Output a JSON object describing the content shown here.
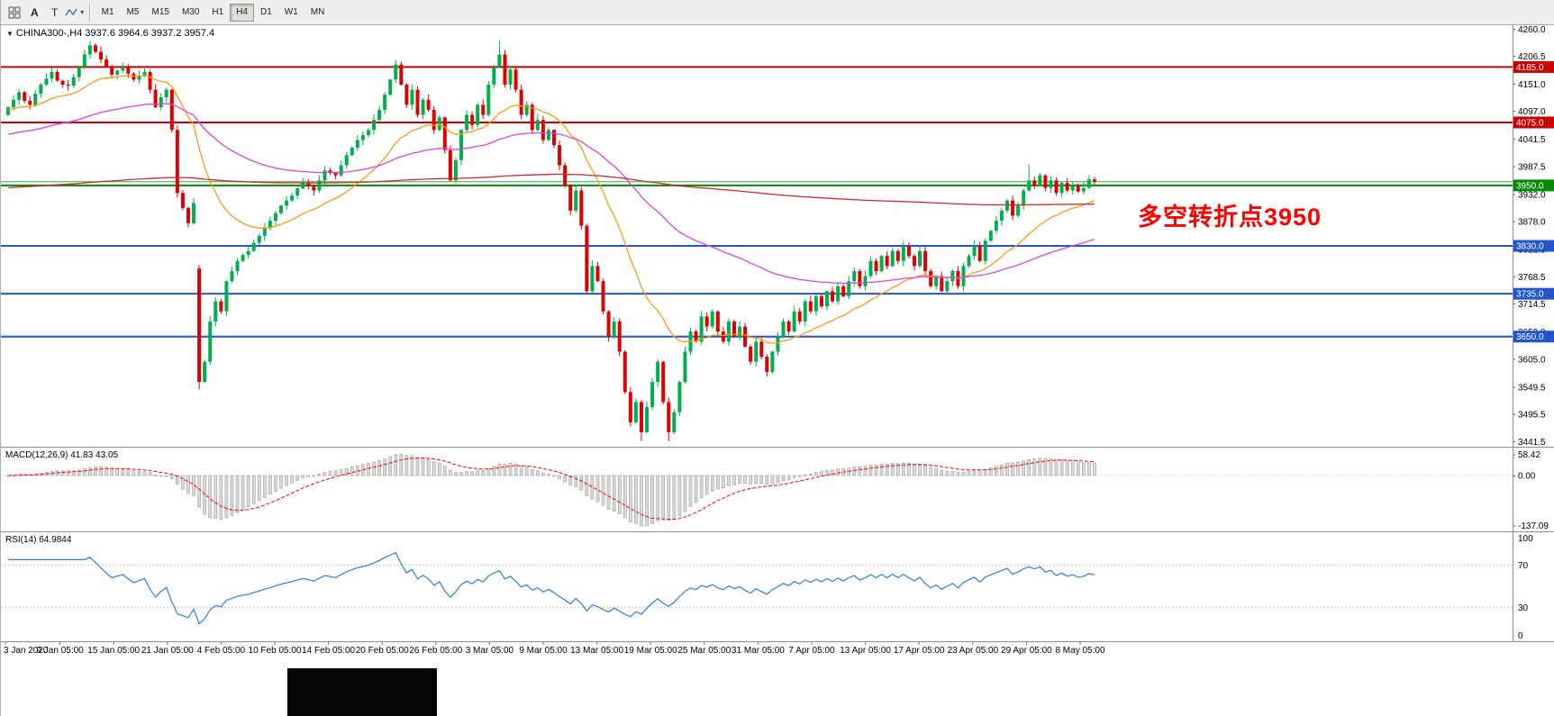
{
  "toolbar": {
    "tools": [
      {
        "label": "A"
      },
      {
        "label": "T"
      }
    ],
    "timeframes": [
      {
        "label": "M1"
      },
      {
        "label": "M5"
      },
      {
        "label": "M15"
      },
      {
        "label": "M30"
      },
      {
        "label": "H1"
      },
      {
        "label": "H4"
      },
      {
        "label": "D1"
      },
      {
        "label": "W1"
      },
      {
        "label": "MN"
      }
    ],
    "active_timeframe": "H4"
  },
  "main": {
    "title": "CHINA300-,H4  3937.6 3964.6 3937.2 3957.4",
    "annotation": {
      "text": "多空转折点3950",
      "color": "#ff0000"
    }
  },
  "colors": {
    "bull": "#00b050",
    "bear": "#e00000",
    "price_line": "#2fae5a",
    "separator": "#8f8f8f",
    "axis_text": "#000000"
  },
  "chart_data": [
    {
      "type": "candlestick",
      "symbol": "CHINA300-",
      "timeframe": "H4",
      "last_bar": {
        "open": 3937.6,
        "high": 3964.6,
        "low": 3937.2,
        "close": 3957.4
      },
      "price_range": [
        3435,
        4268
      ],
      "price_axis_labels": [
        "4260.0",
        "4206.5",
        "4151.0",
        "4097.0",
        "4041.5",
        "3987.5",
        "3932.0",
        "3878.0",
        "3822.5",
        "3768.5",
        "3714.5",
        "3659.0",
        "3605.0",
        "3549.5",
        "3495.5",
        "3441.5"
      ],
      "x_labels": [
        "3 Jan 2020",
        "9 Jan 05:00",
        "15 Jan 05:00",
        "21 Jan 05:00",
        "4 Feb 05:00",
        "10 Feb 05:00",
        "14 Feb 05:00",
        "20 Feb 05:00",
        "26 Feb 05:00",
        "3 Mar 05:00",
        "9 Mar 05:00",
        "13 Mar 05:00",
        "19 Mar 05:00",
        "25 Mar 05:00",
        "31 Mar 05:00",
        "7 Apr 05:00",
        "13 Apr 05:00",
        "17 Apr 05:00",
        "23 Apr 05:00",
        "29 Apr 05:00",
        "8 May 05:00"
      ],
      "first_open": 4090,
      "closes": [
        4105,
        4120,
        4135,
        4118,
        4110,
        4132,
        4150,
        4162,
        4175,
        4158,
        4150,
        4148,
        4165,
        4185,
        4210,
        4228,
        4215,
        4200,
        4185,
        4170,
        4178,
        4185,
        4172,
        4160,
        4168,
        4175,
        4140,
        4105,
        4125,
        4140,
        4060,
        3935,
        3905,
        3875,
        3915,
        3560,
        3600,
        3680,
        3720,
        3700,
        3760,
        3780,
        3800,
        3812,
        3820,
        3836,
        3850,
        3865,
        3880,
        3895,
        3910,
        3920,
        3930,
        3944,
        3955,
        3948,
        3940,
        3960,
        3980,
        3975,
        3970,
        3990,
        4010,
        4025,
        4040,
        4050,
        4060,
        4080,
        4100,
        4130,
        4160,
        4190,
        4150,
        4110,
        4140,
        4090,
        4120,
        4100,
        4060,
        4085,
        4020,
        3960,
        4000,
        4060,
        4090,
        4070,
        4110,
        4090,
        4150,
        4185,
        4210,
        4150,
        4180,
        4140,
        4090,
        4110,
        4060,
        4080,
        4040,
        4060,
        4030,
        3990,
        3950,
        3900,
        3940,
        3870,
        3740,
        3790,
        3760,
        3700,
        3650,
        3680,
        3620,
        3540,
        3480,
        3520,
        3460,
        3510,
        3560,
        3600,
        3520,
        3460,
        3500,
        3560,
        3620,
        3660,
        3640,
        3690,
        3670,
        3700,
        3660,
        3640,
        3680,
        3650,
        3670,
        3630,
        3600,
        3640,
        3610,
        3580,
        3620,
        3650,
        3680,
        3660,
        3700,
        3680,
        3720,
        3700,
        3730,
        3710,
        3740,
        3720,
        3750,
        3730,
        3760,
        3780,
        3750,
        3770,
        3800,
        3780,
        3810,
        3790,
        3820,
        3800,
        3830,
        3810,
        3790,
        3820,
        3780,
        3750,
        3770,
        3740,
        3760,
        3780,
        3750,
        3790,
        3810,
        3830,
        3800,
        3840,
        3860,
        3880,
        3900,
        3920,
        3890,
        3910,
        3940,
        3960,
        3950,
        3970,
        3945,
        3960,
        3935,
        3955,
        3940,
        3950,
        3938,
        3945,
        3962,
        3957.4
      ],
      "gap_opens": {
        "35": 3785
      },
      "high_overrides": {
        "15": 4237,
        "90": 4237,
        "187": 3992
      },
      "low_overrides": {
        "35": 3545,
        "116": 3443,
        "121": 3442
      },
      "levels": [
        {
          "value": 4185.0,
          "label": "4185.0",
          "color": "#cc0000"
        },
        {
          "value": 4075.0,
          "label": "4075.0",
          "color": "#cc0000"
        },
        {
          "value": 3950.0,
          "label": "3950.0",
          "color": "#008a00"
        },
        {
          "value": 3830.0,
          "label": "3830.0",
          "color": "#2255cc"
        },
        {
          "value": 3735.0,
          "label": "3735.0",
          "color": "#2255cc"
        },
        {
          "value": 3650.0,
          "label": "3650.0",
          "color": "#2255cc"
        }
      ],
      "current_price": 3957.4,
      "moving_averages": [
        {
          "name": "ma-fast-orange",
          "period": 21,
          "seed": 4100,
          "color": "#ff9914"
        },
        {
          "name": "ma-mid-magenta",
          "period": 72,
          "seed": 4050,
          "color": "#dd44dd"
        },
        {
          "name": "ma-slow-red",
          "period": 600,
          "seed": 3945,
          "color": "#d42a2a"
        }
      ]
    },
    {
      "type": "bar",
      "name": "MACD",
      "label": "MACD(12,26,9) 41.83 43.05",
      "fast": 12,
      "slow": 26,
      "signal_period": 9,
      "last_main": 41.83,
      "last_signal": 43.05,
      "axis_labels": [
        "58.42",
        "0.00",
        "-137.09"
      ],
      "histogram_fill": "#d9d9d9",
      "histogram_stroke": "#9e9e9e",
      "signal_color": "#ff0000"
    },
    {
      "type": "line",
      "name": "RSI",
      "label": "RSI(14) 64.9844",
      "period": 14,
      "last_value": 64.9844,
      "axis_labels": [
        100,
        70,
        30,
        0
      ],
      "levels": [
        70,
        30
      ],
      "line_color": "#2f7ed8"
    }
  ]
}
